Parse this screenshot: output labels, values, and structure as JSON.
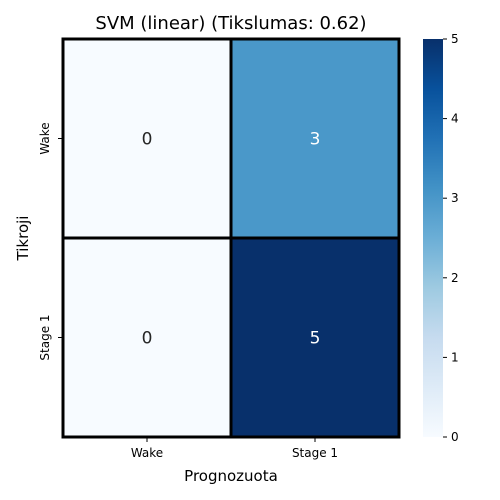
{
  "chart_data": {
    "type": "heatmap",
    "title": "SVM (linear) (Tikslumas: 0.62)",
    "xlabel": "Prognozuota",
    "ylabel": "Tikroji",
    "x_categories": [
      "Wake",
      "Stage 1"
    ],
    "y_categories": [
      "Wake",
      "Stage 1"
    ],
    "values": [
      [
        0,
        3
      ],
      [
        0,
        5
      ]
    ],
    "colormap": "Blues",
    "colorbar": {
      "min": 0,
      "max": 5,
      "ticks": [
        "0",
        "1",
        "2",
        "3",
        "4",
        "5"
      ]
    },
    "annotations": true,
    "cell_border_color": "#000000"
  }
}
